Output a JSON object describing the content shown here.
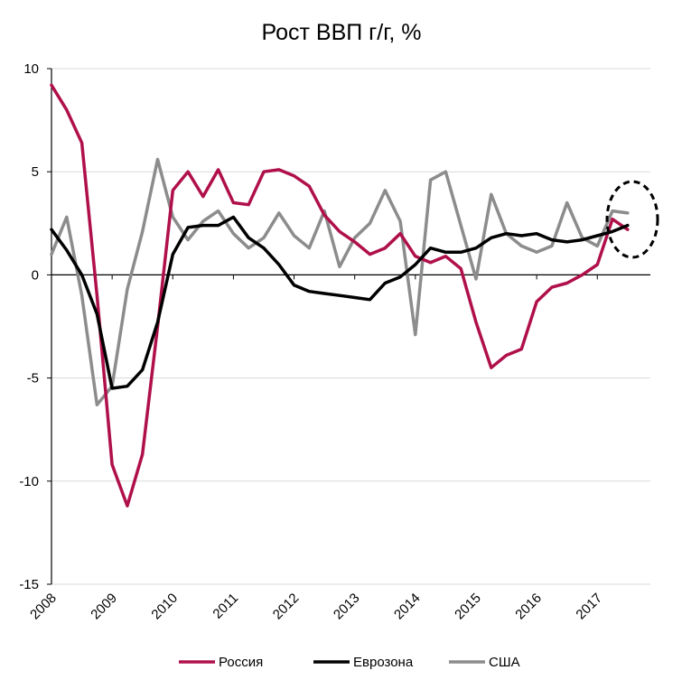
{
  "chart_data": {
    "type": "line",
    "title": "Рост ВВП г/г, %",
    "xlabel": "",
    "ylabel": "",
    "ylim": [
      -15,
      10
    ],
    "yticks": [
      "10",
      "5",
      "0",
      "-5",
      "-10",
      "-15"
    ],
    "xticks": [
      "2008",
      "2009",
      "2010",
      "2011",
      "2012",
      "2013",
      "2014",
      "2015",
      "2016",
      "2017"
    ],
    "xlim": [
      2008,
      2017.875
    ],
    "grid": "horizontal",
    "legend_position": "bottom",
    "annotation": "dashed ellipse around the latest 2017 values",
    "series": [
      {
        "name": "Россия",
        "color": "#b0104a",
        "x": [
          2008.0,
          2008.25,
          2008.5,
          2008.75,
          2009.0,
          2009.25,
          2009.5,
          2009.75,
          2010.0,
          2010.25,
          2010.5,
          2010.75,
          2011.0,
          2011.25,
          2011.5,
          2011.75,
          2012.0,
          2012.25,
          2012.5,
          2012.75,
          2013.0,
          2013.25,
          2013.5,
          2013.75,
          2014.0,
          2014.25,
          2014.5,
          2014.75,
          2015.0,
          2015.25,
          2015.5,
          2015.75,
          2016.0,
          2016.25,
          2016.5,
          2016.75,
          2017.0,
          2017.25,
          2017.5
        ],
        "y": [
          9.2,
          8.0,
          6.4,
          -1.0,
          -9.2,
          -11.2,
          -8.7,
          -2.5,
          4.1,
          5.0,
          3.8,
          5.1,
          3.5,
          3.4,
          5.0,
          5.1,
          4.8,
          4.3,
          2.9,
          2.1,
          1.6,
          1.0,
          1.3,
          2.0,
          0.9,
          0.6,
          0.9,
          0.3,
          -2.3,
          -4.5,
          -3.9,
          -3.6,
          -1.3,
          -0.6,
          -0.4,
          0.0,
          0.5,
          2.7,
          2.2
        ]
      },
      {
        "name": "Еврозона",
        "color": "#000000",
        "x": [
          2008.0,
          2008.25,
          2008.5,
          2008.75,
          2009.0,
          2009.25,
          2009.5,
          2009.75,
          2010.0,
          2010.25,
          2010.5,
          2010.75,
          2011.0,
          2011.25,
          2011.5,
          2011.75,
          2012.0,
          2012.25,
          2012.5,
          2012.75,
          2013.0,
          2013.25,
          2013.5,
          2013.75,
          2014.0,
          2014.25,
          2014.5,
          2014.75,
          2015.0,
          2015.25,
          2015.5,
          2015.75,
          2016.0,
          2016.25,
          2016.5,
          2016.75,
          2017.0,
          2017.25,
          2017.5
        ],
        "y": [
          2.2,
          1.2,
          0.0,
          -1.9,
          -5.5,
          -5.4,
          -4.6,
          -2.3,
          1.0,
          2.3,
          2.4,
          2.4,
          2.8,
          1.8,
          1.3,
          0.5,
          -0.5,
          -0.8,
          -0.9,
          -1.0,
          -1.1,
          -1.2,
          -0.4,
          -0.1,
          0.5,
          1.3,
          1.1,
          1.1,
          1.3,
          1.8,
          2.0,
          1.9,
          2.0,
          1.7,
          1.6,
          1.7,
          1.9,
          2.1,
          2.4
        ]
      },
      {
        "name": "США",
        "color": "#8c8c8c",
        "x": [
          2008.0,
          2008.25,
          2008.5,
          2008.75,
          2009.0,
          2009.25,
          2009.5,
          2009.75,
          2010.0,
          2010.25,
          2010.5,
          2010.75,
          2011.0,
          2011.25,
          2011.5,
          2011.75,
          2012.0,
          2012.25,
          2012.5,
          2012.75,
          2013.0,
          2013.25,
          2013.5,
          2013.75,
          2014.0,
          2014.25,
          2014.5,
          2014.75,
          2015.0,
          2015.25,
          2015.5,
          2015.75,
          2016.0,
          2016.25,
          2016.5,
          2016.75,
          2017.0,
          2017.25,
          2017.5
        ],
        "y": [
          1.0,
          2.8,
          -1.0,
          -6.3,
          -5.4,
          -0.7,
          2.1,
          5.6,
          2.8,
          1.7,
          2.6,
          3.1,
          2.0,
          1.3,
          1.8,
          3.0,
          1.9,
          1.3,
          3.1,
          0.4,
          1.8,
          2.5,
          4.1,
          2.6,
          -2.9,
          4.6,
          5.0,
          2.4,
          -0.2,
          3.9,
          2.0,
          1.4,
          1.1,
          1.4,
          3.5,
          1.8,
          1.4,
          3.1,
          3.0
        ]
      }
    ]
  }
}
